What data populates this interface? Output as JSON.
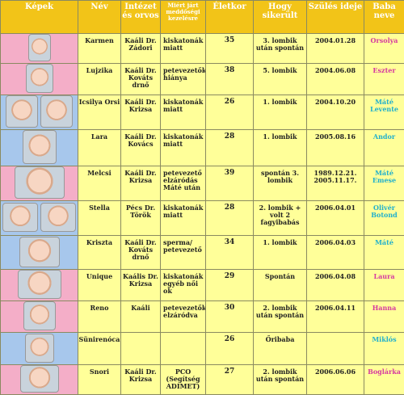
{
  "headers": [
    "Képek",
    "Név",
    "Intézet és orvos",
    "Miért járt meddőségi kezelésre",
    "Életkor",
    "Hogy sikerült",
    "Szülés ideje",
    "Baba neve"
  ],
  "rows": [
    {
      "name": "Karmen",
      "inst": "Kaáli Dr. Zádori",
      "reason": "kiskatonák miatt",
      "age": "35",
      "how": "3. lombik után spontán",
      "date": "2004.01.28",
      "baby": "Orsolya"
    },
    {
      "name": "Lujzika",
      "inst": "Kaáli Dr. Kováts drnő",
      "reason": "petevezetők hiánya",
      "age": "38",
      "how": "5. lombik",
      "date": "2004.06.08",
      "baby": "Eszter"
    },
    {
      "name": "Icsilya Orsi",
      "inst": "Kaáli Dr. Krizsa",
      "reason": "kiskatonák miatt",
      "age": "26",
      "how": "1. lombik",
      "date": "2004.10.20",
      "baby": "Máté Levente"
    },
    {
      "name": "Lara",
      "inst": "Kaáli Dr. Kovács",
      "reason": "kiskatonák miatt",
      "age": "28",
      "how": "1. lombik",
      "date": "2005.08.16",
      "baby": "Andor"
    },
    {
      "name": "Melcsi",
      "inst": "Kaáli Dr. Krizsa",
      "reason": "petevezető elzáródás Máté után",
      "age": "39",
      "how": "spontán 3. lombik",
      "date": "1989.12.21. 2005.11.17.",
      "baby": "Máté Emese"
    },
    {
      "name": "Stella",
      "inst": "Pécs Dr. Török",
      "reason": "kiskatonák miatt",
      "age": "28",
      "how": "2. lombik + volt 2 fagyibabás",
      "date": "2006.04.01",
      "baby": "Olivér Botond"
    },
    {
      "name": "Kriszta",
      "inst": "Kaáli Dr. Kováts drnő",
      "reason": "sperma/ petevezető",
      "age": "34",
      "how": "1. lombik",
      "date": "2006.04.03",
      "baby": "Máté"
    },
    {
      "name": "Unique",
      "inst": "Kaális Dr. Krizsa",
      "reason": "kiskatonák egyéb női ok",
      "age": "29",
      "how": "Spontán",
      "date": "2006.04.08",
      "baby": "Laura"
    },
    {
      "name": "Reno",
      "inst": "Kaáli",
      "reason": "petevezetők elzáródva",
      "age": "30",
      "how": "2. lombik után spontán",
      "date": "2006.04.11",
      "baby": "Hanna"
    },
    {
      "name": "Sünirenóca",
      "inst": "",
      "reason": "",
      "age": "26",
      "how": "Őribaba",
      "date": "",
      "baby": "Miklós"
    },
    {
      "name": "Snori",
      "inst": "Kaáli Dr. Krizsa",
      "reason": "PCO (Segítség ADIMET)",
      "age": "27",
      "how": "2. lombik után spontán",
      "date": "2006.06.06",
      "baby": "Boglárka"
    }
  ]
}
